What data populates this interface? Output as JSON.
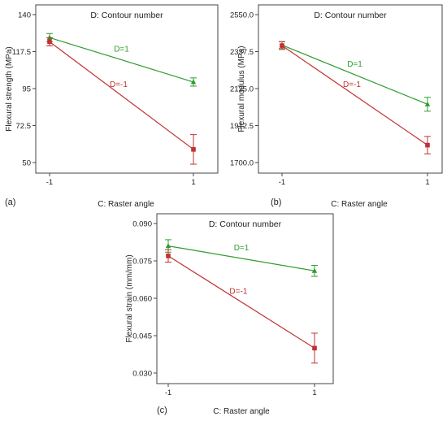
{
  "chart_data": [
    {
      "type": "line",
      "panel": "(a)",
      "title": "D: Contour number",
      "xlabel": "C: Raster angle",
      "ylabel": "Flexural strength (MPa)",
      "x": [
        -1,
        1
      ],
      "xticks": [
        "-1",
        "1"
      ],
      "ylim": [
        50,
        140
      ],
      "yticks": [
        "50",
        "72.5",
        "95",
        "117.5",
        "140"
      ],
      "ytick_values": [
        50,
        72.5,
        95,
        117.5,
        140
      ],
      "series": [
        {
          "name": "D=1",
          "color": "#2e9c2e",
          "marker": "triangle",
          "values": [
            126,
            99
          ],
          "err_low": [
            123.5,
            96.5
          ],
          "err_high": [
            128.5,
            101.5
          ]
        },
        {
          "name": "D=-1",
          "color": "#c23030",
          "marker": "square",
          "values": [
            123.5,
            58
          ],
          "err_low": [
            121,
            49
          ],
          "err_high": [
            126,
            67
          ]
        }
      ]
    },
    {
      "type": "line",
      "panel": "(b)",
      "title": "D: Contour number",
      "xlabel": "C: Raster angle",
      "ylabel": "Flexural modulus (MPa)",
      "x": [
        -1,
        1
      ],
      "xticks": [
        "-1",
        "1"
      ],
      "ylim": [
        1700,
        2550
      ],
      "yticks": [
        "1700.0",
        "1912.5",
        "2125.0",
        "2337.5",
        "2550.0"
      ],
      "ytick_values": [
        1700,
        1912.5,
        2125,
        2337.5,
        2550
      ],
      "series": [
        {
          "name": "D=1",
          "color": "#2e9c2e",
          "marker": "triangle",
          "values": [
            2375,
            2035
          ],
          "err_low": [
            2355,
            1995
          ],
          "err_high": [
            2395,
            2075
          ]
        },
        {
          "name": "D=-1",
          "color": "#c23030",
          "marker": "square",
          "values": [
            2372,
            1800
          ],
          "err_low": [
            2350,
            1750
          ],
          "err_high": [
            2394,
            1850
          ]
        }
      ]
    },
    {
      "type": "line",
      "panel": "(c)",
      "title": "D: Contour number",
      "xlabel": "C: Raster angle",
      "ylabel": "Flexural strain (mm/mm)",
      "x": [
        -1,
        1
      ],
      "xticks": [
        "-1",
        "1"
      ],
      "ylim": [
        0.03,
        0.09
      ],
      "yticks": [
        "0.030",
        "0.045",
        "0.060",
        "0.075",
        "0.090"
      ],
      "ytick_values": [
        0.03,
        0.045,
        0.06,
        0.075,
        0.09
      ],
      "series": [
        {
          "name": "D=1",
          "color": "#2e9c2e",
          "marker": "triangle",
          "values": [
            0.081,
            0.071
          ],
          "err_low": [
            0.0785,
            0.0688
          ],
          "err_high": [
            0.0835,
            0.0732
          ]
        },
        {
          "name": "D=-1",
          "color": "#c23030",
          "marker": "square",
          "values": [
            0.077,
            0.04
          ],
          "err_low": [
            0.0745,
            0.034
          ],
          "err_high": [
            0.0795,
            0.046
          ]
        }
      ]
    }
  ]
}
